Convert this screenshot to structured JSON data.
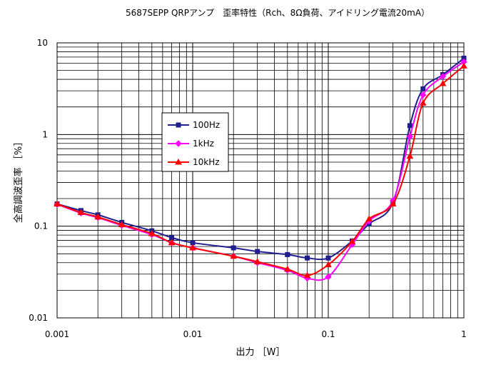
{
  "chart_data": {
    "type": "line",
    "title": "5687SEPP QRPアンプ　歪率特性（Rch、8Ω負荷、アイドリング電流20mA）",
    "xlabel": "出力 ［W］",
    "ylabel": "全高調波歪率 ［%］",
    "x_scale": "log",
    "y_scale": "log",
    "xlim": [
      0.001,
      1
    ],
    "ylim": [
      0.01,
      10
    ],
    "x_ticks": [
      "0.001",
      "0.01",
      "0.1",
      "1"
    ],
    "y_ticks": [
      "0.01",
      "0.1",
      "1",
      "10"
    ],
    "grid": true,
    "legend_position": "left-middle",
    "series": [
      {
        "name": "100Hz",
        "color": "#1f1f8f",
        "marker": "square",
        "points": [
          [
            0.001,
            0.175
          ],
          [
            0.0015,
            0.148
          ],
          [
            0.002,
            0.133
          ],
          [
            0.003,
            0.11
          ],
          [
            0.005,
            0.089
          ],
          [
            0.007,
            0.075
          ],
          [
            0.01,
            0.066
          ],
          [
            0.02,
            0.058
          ],
          [
            0.03,
            0.053
          ],
          [
            0.05,
            0.049
          ],
          [
            0.07,
            0.045
          ],
          [
            0.1,
            0.045
          ],
          [
            0.15,
            0.069
          ],
          [
            0.2,
            0.106
          ],
          [
            0.3,
            0.18
          ],
          [
            0.4,
            1.25
          ],
          [
            0.5,
            3.15
          ],
          [
            0.7,
            4.5
          ],
          [
            1.0,
            6.8
          ]
        ]
      },
      {
        "name": "1kHz",
        "color": "#ff00ff",
        "marker": "diamond",
        "points": [
          [
            0.001,
            0.173
          ],
          [
            0.0015,
            0.139
          ],
          [
            0.002,
            0.124
          ],
          [
            0.003,
            0.102
          ],
          [
            0.005,
            0.081
          ],
          [
            0.007,
            0.066
          ],
          [
            0.01,
            0.058
          ],
          [
            0.02,
            0.047
          ],
          [
            0.03,
            0.04
          ],
          [
            0.05,
            0.033
          ],
          [
            0.07,
            0.027
          ],
          [
            0.1,
            0.028
          ],
          [
            0.15,
            0.063
          ],
          [
            0.2,
            0.114
          ],
          [
            0.3,
            0.19
          ],
          [
            0.4,
            0.95
          ],
          [
            0.5,
            2.7
          ],
          [
            0.7,
            4.3
          ],
          [
            1.0,
            6.2
          ]
        ]
      },
      {
        "name": "10kHz",
        "color": "#ff0000",
        "marker": "triangle",
        "points": [
          [
            0.001,
            0.175
          ],
          [
            0.0015,
            0.141
          ],
          [
            0.002,
            0.126
          ],
          [
            0.003,
            0.104
          ],
          [
            0.005,
            0.083
          ],
          [
            0.007,
            0.066
          ],
          [
            0.01,
            0.058
          ],
          [
            0.02,
            0.047
          ],
          [
            0.03,
            0.041
          ],
          [
            0.05,
            0.034
          ],
          [
            0.07,
            0.029
          ],
          [
            0.1,
            0.038
          ],
          [
            0.15,
            0.068
          ],
          [
            0.2,
            0.12
          ],
          [
            0.3,
            0.175
          ],
          [
            0.4,
            0.58
          ],
          [
            0.5,
            2.2
          ],
          [
            0.7,
            3.6
          ],
          [
            1.0,
            5.6
          ]
        ]
      }
    ]
  }
}
